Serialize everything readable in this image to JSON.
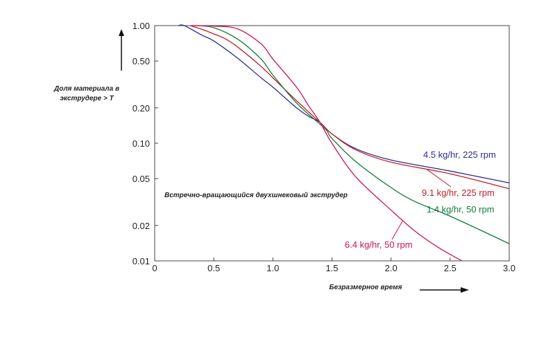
{
  "chart_data": {
    "type": "line",
    "title": "",
    "xlabel": "Безразмерное время",
    "ylabel_line1": "Доля материала в",
    "ylabel_line2": "экструдере > T",
    "annotation": "Встречно-вращающийся двухшнековый экструдер",
    "xlim": [
      0,
      3.0
    ],
    "ylim": [
      0.01,
      1.0
    ],
    "yscale": "log",
    "grid": false,
    "x_ticks": [
      "0",
      "0.5",
      "1.0",
      "1.5",
      "2.0",
      "2.5",
      "3.0"
    ],
    "y_ticks": [
      "1.00",
      "0.50",
      "0.20",
      "0.10",
      "0.05",
      "0.02",
      "0.01"
    ],
    "x_tick_values": [
      0,
      0.5,
      1.0,
      1.5,
      2.0,
      2.5,
      3.0
    ],
    "y_tick_values": [
      1.0,
      0.5,
      0.2,
      0.1,
      0.05,
      0.02,
      0.01
    ],
    "series": [
      {
        "name": "4.5 kg/hr, 225 rpm",
        "color": "#2b2b8c",
        "x": [
          0.2,
          0.25,
          0.4,
          0.5,
          0.7,
          0.9,
          1.0,
          1.2,
          1.3,
          1.4,
          1.5,
          1.7,
          2.0,
          2.5,
          3.0
        ],
        "y": [
          1.0,
          1.0,
          0.83,
          0.74,
          0.53,
          0.36,
          0.3,
          0.2,
          0.17,
          0.15,
          0.12,
          0.09,
          0.072,
          0.058,
          0.046
        ]
      },
      {
        "name": "9.1 kg/hr, 225 rpm",
        "color": "#c0202a",
        "x": [
          0.3,
          0.4,
          0.5,
          0.6,
          0.7,
          0.9,
          1.0,
          1.2,
          1.4,
          1.5,
          1.7,
          2.0,
          2.5,
          3.0
        ],
        "y": [
          1.0,
          0.93,
          0.85,
          0.77,
          0.66,
          0.45,
          0.36,
          0.23,
          0.15,
          0.12,
          0.088,
          0.069,
          0.055,
          0.041
        ]
      },
      {
        "name": "1.4 kg/hr, 50 rpm",
        "color": "#0e7a3a",
        "x": [
          0.35,
          0.5,
          0.7,
          0.9,
          1.0,
          1.2,
          1.35,
          1.45,
          1.5,
          1.7,
          2.0,
          2.2,
          2.5,
          3.0
        ],
        "y": [
          1.0,
          0.96,
          0.77,
          0.52,
          0.38,
          0.22,
          0.16,
          0.13,
          0.11,
          0.07,
          0.042,
          0.032,
          0.024,
          0.014
        ]
      },
      {
        "name": "6.4 kg/hr, 50 rpm",
        "color": "#cc1155",
        "x": [
          0.3,
          0.5,
          0.7,
          0.9,
          1.0,
          1.2,
          1.3,
          1.4,
          1.5,
          1.7,
          2.0,
          2.2,
          2.4,
          2.6
        ],
        "y": [
          1.0,
          0.99,
          0.94,
          0.7,
          0.52,
          0.3,
          0.21,
          0.15,
          0.1,
          0.052,
          0.027,
          0.018,
          0.013,
          0.01
        ]
      }
    ],
    "series_label_positions": [
      "right-upper",
      "right-middle",
      "right-lower",
      "center-bottom"
    ]
  }
}
